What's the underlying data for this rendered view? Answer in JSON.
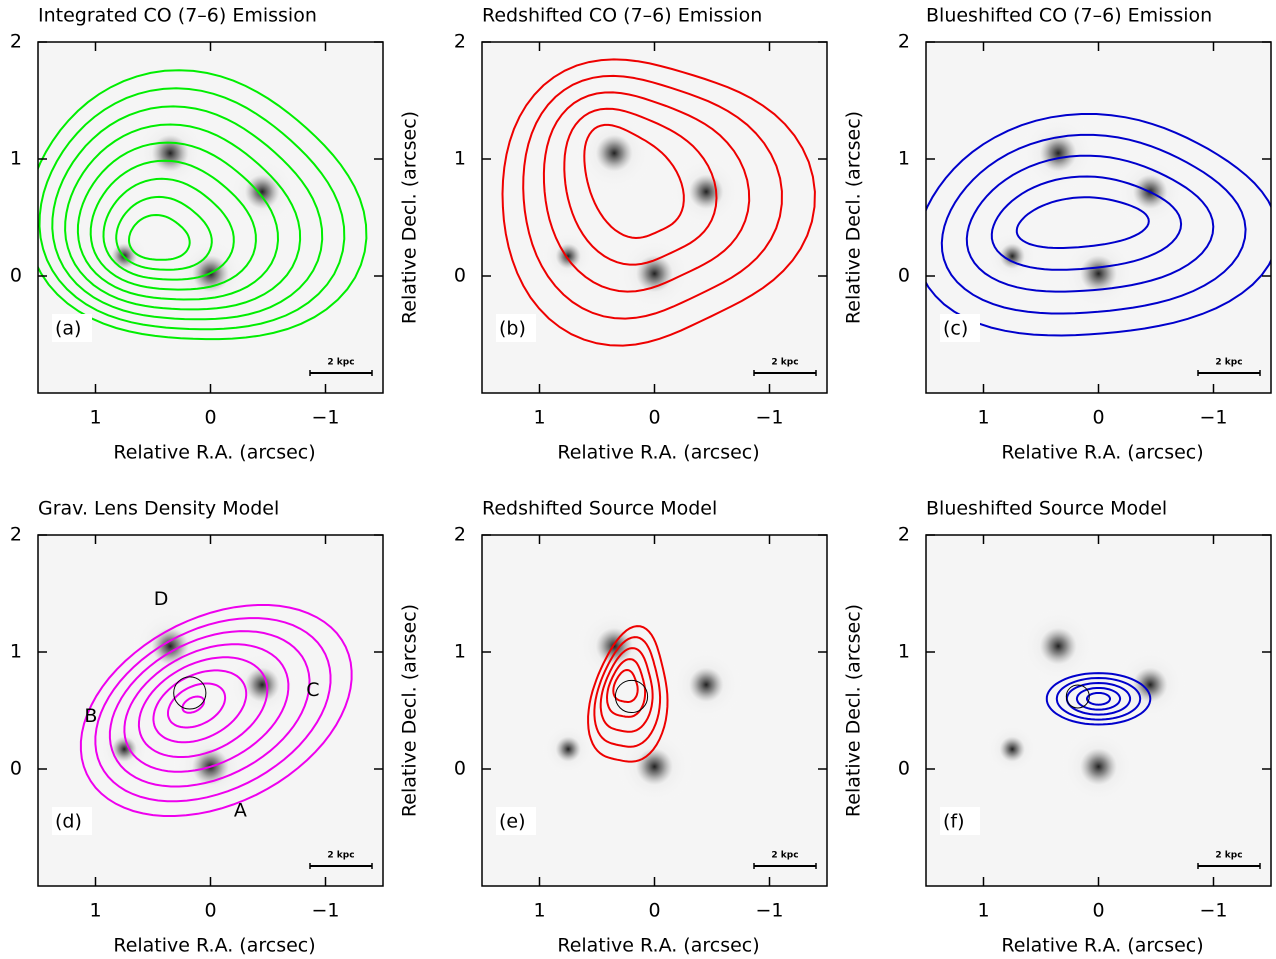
{
  "chart_data": [
    {
      "type": "contour",
      "title": "Integrated CO (7–6) Emission",
      "xlabel": "Relative R.A. (arcsec)",
      "panel_label": "(a)",
      "scale_label": "2 kpc",
      "color": "#00ee00",
      "xlim": [
        1.5,
        -1.5
      ],
      "ylim": [
        -1,
        2
      ],
      "xticks": [
        {
          "value": 1,
          "label": "1"
        },
        0,
        {
          "value": -1,
          "label": "−1"
        }
      ],
      "yticks": [
        0,
        1,
        2
      ]
    },
    {
      "type": "contour",
      "title": "Redshifted CO (7–6) Emission",
      "xlabel": "Relative R.A. (arcsec)",
      "ylabel": "Relative Decl. (arcsec)",
      "panel_label": "(b)",
      "scale_label": "2 kpc",
      "color": "#ee0000",
      "xlim": [
        1.5,
        -1.5
      ],
      "ylim": [
        -1,
        2
      ],
      "xticks": [
        {
          "value": 1,
          "label": "1"
        },
        0,
        {
          "value": -1,
          "label": "−1"
        }
      ],
      "yticks": [
        0,
        1,
        2
      ]
    },
    {
      "type": "contour",
      "title": "Blueshifted CO (7–6) Emission",
      "xlabel": "Relative R.A. (arcsec)",
      "ylabel": "Relative Decl. (arcsec)",
      "panel_label": "(c)",
      "scale_label": "2 kpc",
      "color": "#0000cc",
      "xlim": [
        1.5,
        -1.5
      ],
      "ylim": [
        -1,
        2
      ],
      "xticks": [
        {
          "value": 1,
          "label": "1"
        },
        0,
        {
          "value": -1,
          "label": "−1"
        }
      ],
      "yticks": [
        0,
        1,
        2
      ]
    },
    {
      "type": "contour",
      "title": "Grav. Lens Density Model",
      "xlabel": "Relative R.A. (arcsec)",
      "panel_label": "(d)",
      "scale_label": "2 kpc",
      "color": "#ee00ee",
      "annotations": [
        "D",
        "B",
        "C",
        "A"
      ],
      "xlim": [
        1.5,
        -1.5
      ],
      "ylim": [
        -1,
        2
      ],
      "xticks": [
        {
          "value": 1,
          "label": "1"
        },
        0,
        {
          "value": -1,
          "label": "−1"
        }
      ],
      "yticks": [
        0,
        1,
        2
      ]
    },
    {
      "type": "contour",
      "title": "Redshifted Source Model",
      "xlabel": "Relative R.A. (arcsec)",
      "ylabel": "Relative Decl. (arcsec)",
      "panel_label": "(e)",
      "scale_label": "2 kpc",
      "color": "#ee0000",
      "xlim": [
        1.5,
        -1.5
      ],
      "ylim": [
        -1,
        2
      ],
      "xticks": [
        {
          "value": 1,
          "label": "1"
        },
        0,
        {
          "value": -1,
          "label": "−1"
        }
      ],
      "yticks": [
        0,
        1,
        2
      ]
    },
    {
      "type": "contour",
      "title": "Blueshifted Source Model",
      "xlabel": "Relative R.A. (arcsec)",
      "ylabel": "Relative Decl. (arcsec)",
      "panel_label": "(f)",
      "scale_label": "2 kpc",
      "color": "#0000cc",
      "xlim": [
        1.5,
        -1.5
      ],
      "ylim": [
        -1,
        2
      ],
      "xticks": [
        {
          "value": 1,
          "label": "1"
        },
        0,
        {
          "value": -1,
          "label": "−1"
        }
      ],
      "yticks": [
        0,
        1,
        2
      ]
    }
  ]
}
